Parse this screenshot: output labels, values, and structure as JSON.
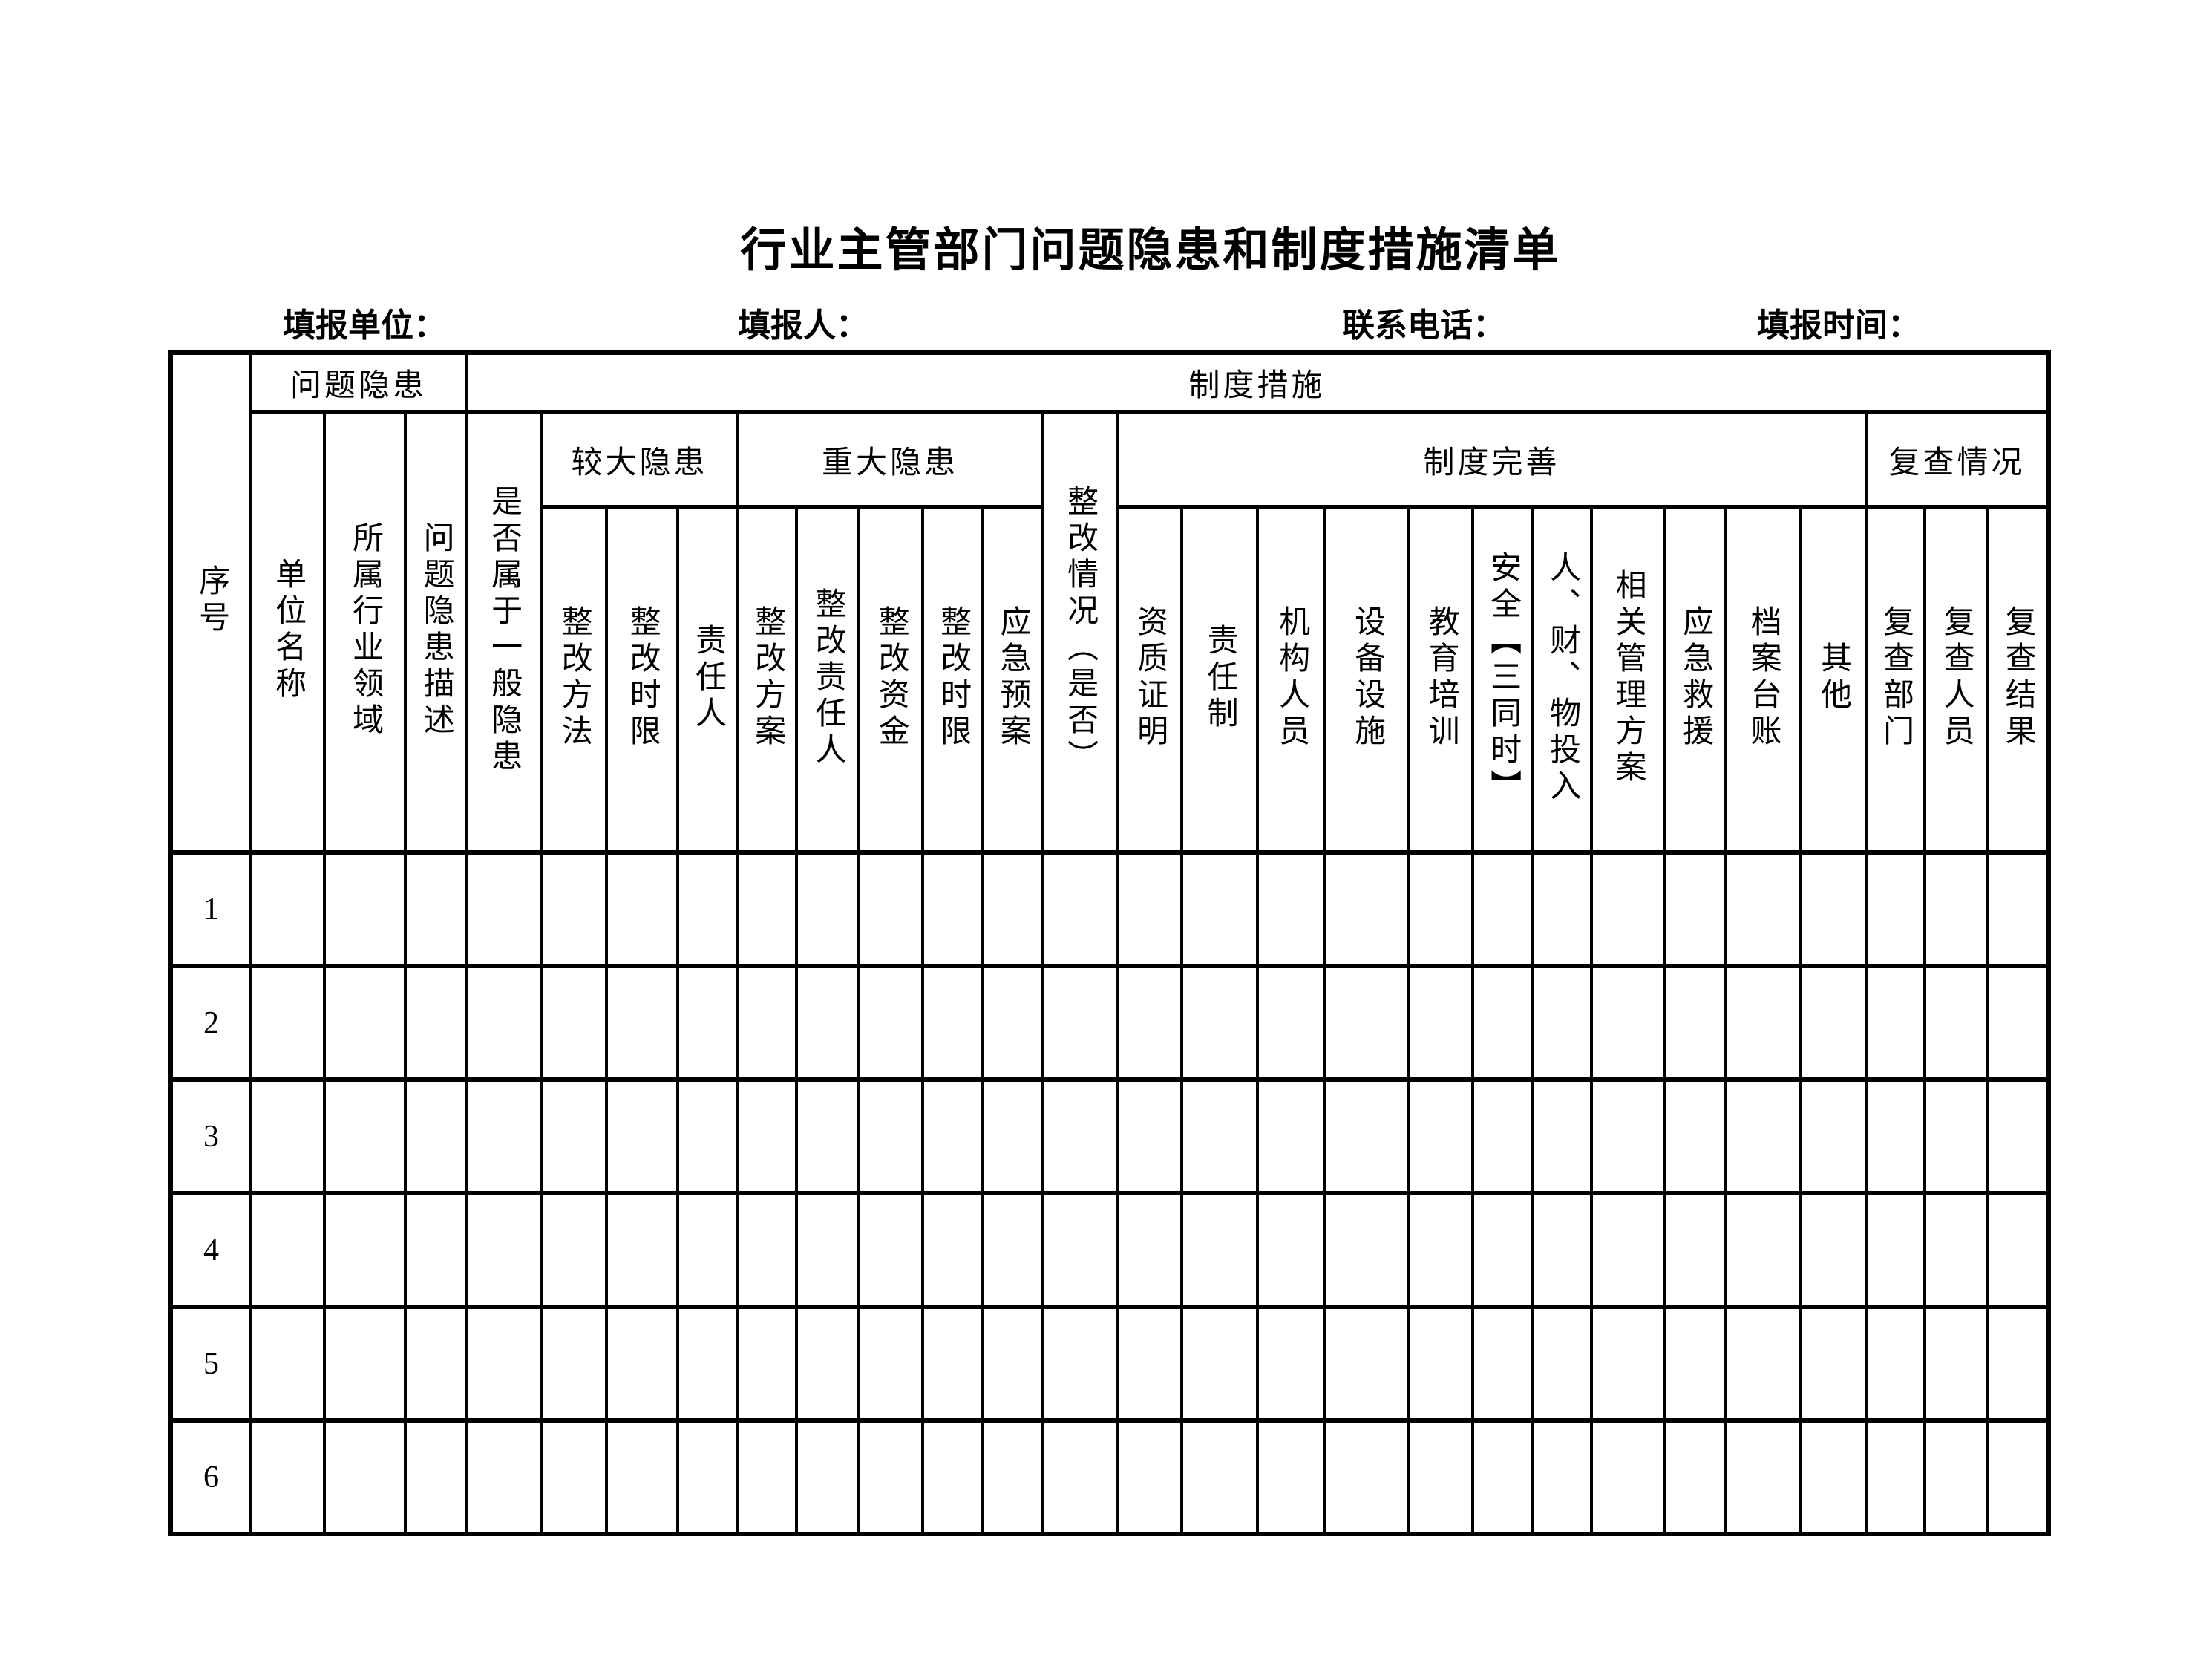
{
  "page": {
    "title": "行业主管部门问题隐患和制度措施清单",
    "form_labels": {
      "unit": "填报单位：",
      "person": "填报人：",
      "phone": "联系电话：",
      "date": "填报时间："
    }
  },
  "table": {
    "corner": "序号",
    "groups": {
      "problem": "问题隐患",
      "measures": "制度措施",
      "major": "较大隐患",
      "severe": "重大隐患",
      "improve": "制度完善",
      "review": "复查情况"
    },
    "problem_cols": [
      "单位名称",
      "所属行业领域",
      "问题隐患描述"
    ],
    "general_hazard_col": "是否属于一般隐患",
    "rectify_status_col": "整改情况（是否）",
    "major_cols": [
      "整改方法",
      "整改时限",
      "责任人"
    ],
    "severe_cols": [
      "整改方案",
      "整改责任人",
      "整改资金",
      "整改时限",
      "应急预案"
    ],
    "improve_cols": [
      "资质证明",
      "责任制",
      "机构人员",
      "设备设施",
      "教育培训",
      "安全【三同时】",
      "人、财、物投入",
      "相关管理方案",
      "应急救援",
      "档案台账",
      "其他"
    ],
    "review_cols": [
      "复查部门",
      "复查人员",
      "复查结果"
    ],
    "rows": [
      {
        "no": "1"
      },
      {
        "no": "2"
      },
      {
        "no": "3"
      },
      {
        "no": "4"
      },
      {
        "no": "5"
      },
      {
        "no": "6"
      }
    ],
    "columns_per_row": 28
  }
}
